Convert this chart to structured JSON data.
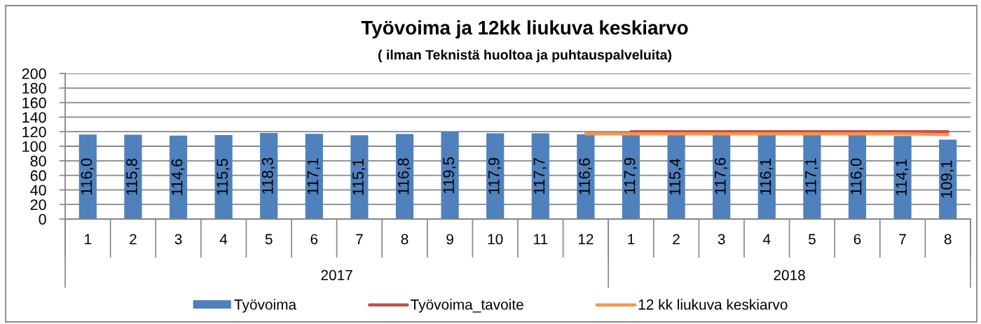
{
  "chart_data": {
    "type": "bar",
    "title": "Työvoima ja 12kk liukuva keskiarvo",
    "subtitle": "( ilman Teknistä huoltoa ja puhtauspalveluita)",
    "categories": [
      "1",
      "2",
      "3",
      "4",
      "5",
      "6",
      "7",
      "8",
      "9",
      "10",
      "11",
      "12",
      "1",
      "2",
      "3",
      "4",
      "5",
      "6",
      "7",
      "8"
    ],
    "annotations": [
      "2017",
      "2018"
    ],
    "ylim": [
      0,
      200
    ],
    "yticks": [
      0,
      20,
      40,
      60,
      80,
      100,
      120,
      140,
      160,
      180,
      200
    ],
    "grid": "y",
    "legend": "bottom",
    "line_style": "solid",
    "series": [
      {
        "name": "Työvoima",
        "color": "#4f81bd",
        "values": [
          116.0,
          115.8,
          114.6,
          115.5,
          118.3,
          117.1,
          115.1,
          116.8,
          119.5,
          117.9,
          117.7,
          116.6,
          117.9,
          115.4,
          117.6,
          116.1,
          117.1,
          116.0,
          114.1,
          109.1
        ],
        "value_labels": [
          "116,0",
          "115,8",
          "114,6",
          "115,5",
          "118,3",
          "117,1",
          "115,1",
          "116,8",
          "119,5",
          "117,9",
          "117,7",
          "116,6",
          "117,9",
          "115,4",
          "117,6",
          "116,1",
          "117,1",
          "116,0",
          "114,1",
          "109,1"
        ]
      },
      {
        "name": "Työvoima_tavoite",
        "type": "line",
        "color": "#c0504d",
        "values": [
          null,
          null,
          null,
          null,
          null,
          null,
          null,
          null,
          null,
          null,
          null,
          null,
          120,
          120,
          120,
          120,
          120,
          120,
          120,
          120
        ]
      },
      {
        "name": "12 kk liukuva keskiarvo",
        "type": "line",
        "color": "#f79646",
        "values": [
          null,
          null,
          null,
          null,
          null,
          null,
          null,
          null,
          null,
          null,
          null,
          117,
          117,
          117,
          117,
          117,
          117,
          117,
          117,
          116
        ]
      }
    ]
  }
}
